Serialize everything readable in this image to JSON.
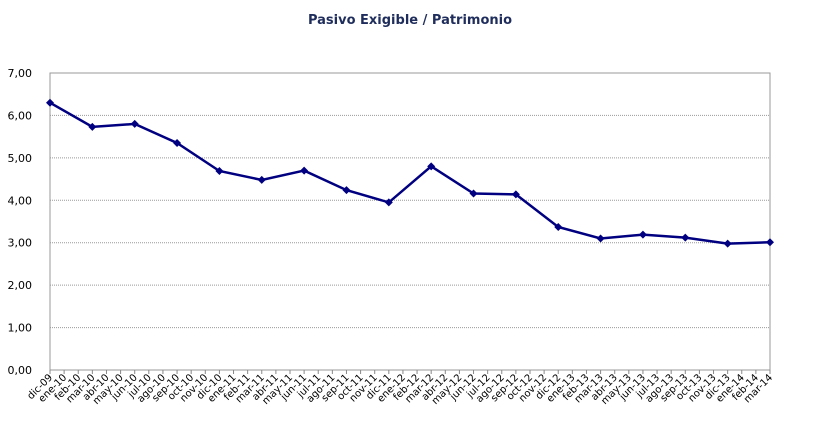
{
  "chart_data": {
    "type": "line",
    "title": "Pasivo Exigible / Patrimonio",
    "categories": [
      "dic-09",
      "ene-10",
      "feb-10",
      "mar-10",
      "abr-10",
      "may-10",
      "jun-10",
      "jul-10",
      "ago-10",
      "sep-10",
      "oct-10",
      "nov-10",
      "dic-10",
      "ene-11",
      "feb-11",
      "mar-11",
      "abr-11",
      "may-11",
      "jun-11",
      "jul-11",
      "ago-11",
      "sep-11",
      "oct-11",
      "nov-11",
      "dic-11",
      "ene-12",
      "feb-12",
      "mar-12",
      "abr-12",
      "may-12",
      "jun-12",
      "jul-12",
      "ago-12",
      "sep-12",
      "oct-12",
      "nov-12",
      "dic-12",
      "ene-13",
      "feb-13",
      "mar-13",
      "abr-13",
      "may-13",
      "jun-13",
      "jul-13",
      "ago-13",
      "sep-13",
      "oct-13",
      "nov-13",
      "dic-13",
      "ene-14",
      "feb-14",
      "mar-14"
    ],
    "series": [
      {
        "color": "#000080",
        "x": [
          "dic-09",
          "mar-10",
          "jun-10",
          "sep-10",
          "dic-10",
          "mar-11",
          "jun-11",
          "sep-11",
          "dic-11",
          "mar-12",
          "jun-12",
          "sep-12",
          "dic-12",
          "mar-13",
          "jun-13",
          "sep-13",
          "dic-13",
          "mar-14"
        ],
        "values": [
          6.3,
          5.73,
          5.8,
          5.35,
          4.69,
          4.48,
          4.7,
          4.24,
          3.95,
          4.8,
          4.16,
          4.14,
          3.37,
          3.1,
          3.19,
          3.12,
          2.98,
          3.01
        ]
      }
    ],
    "ylim": [
      0,
      7
    ],
    "yticks": [
      {
        "value": 0,
        "label": "0,00"
      },
      {
        "value": 1,
        "label": "1,00"
      },
      {
        "value": 2,
        "label": "2,00"
      },
      {
        "value": 3,
        "label": "3,00"
      },
      {
        "value": 4,
        "label": "4,00"
      },
      {
        "value": 5,
        "label": "5,00"
      },
      {
        "value": 6,
        "label": "6,00"
      },
      {
        "value": 7,
        "label": "7,00"
      }
    ],
    "grid": true
  }
}
